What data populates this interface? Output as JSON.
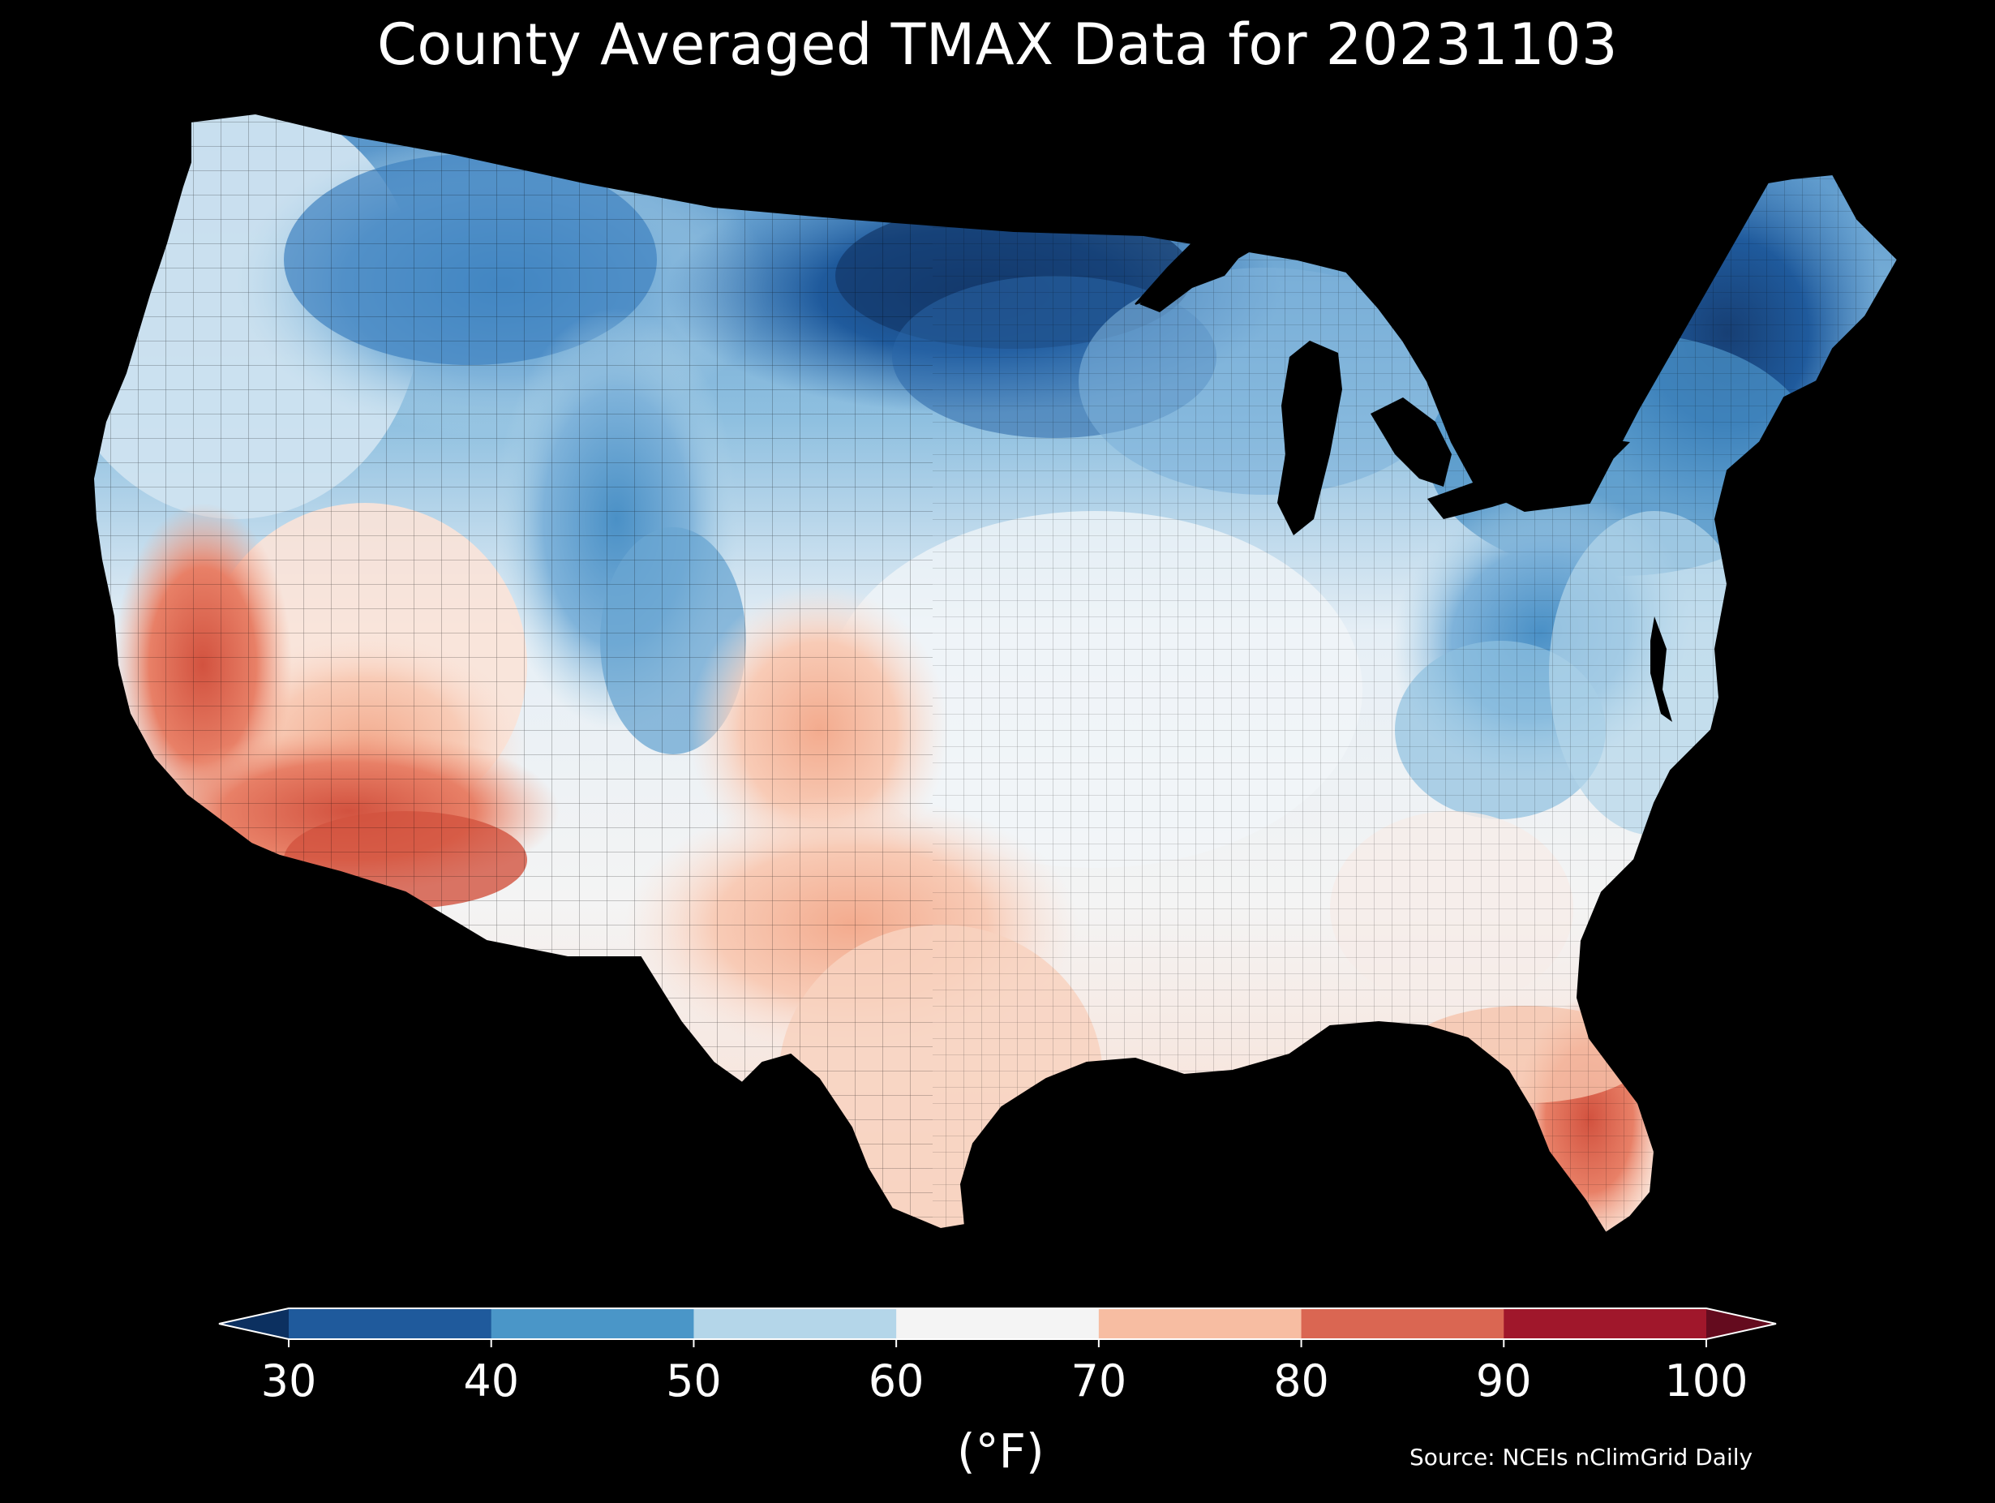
{
  "title": "County Averaged TMAX Data for 20231103",
  "source_note": "Source: NCEIs nClimGrid Daily",
  "colorbar": {
    "unit_label": "(°F)",
    "ticks": [
      "30",
      "40",
      "50",
      "60",
      "70",
      "80",
      "90",
      "100"
    ],
    "bins": [
      {
        "range": [
          30,
          40
        ],
        "color": "#1f5a9c"
      },
      {
        "range": [
          40,
          50
        ],
        "color": "#4a96c8"
      },
      {
        "range": [
          50,
          60
        ],
        "color": "#b4d6e9"
      },
      {
        "range": [
          60,
          70
        ],
        "color": "#f4f4f4"
      },
      {
        "range": [
          70,
          80
        ],
        "color": "#f7bda2"
      },
      {
        "range": [
          80,
          90
        ],
        "color": "#da6652"
      },
      {
        "range": [
          90,
          100
        ],
        "color": "#a0172b"
      }
    ],
    "under_color": "#0c3060",
    "over_color": "#640b1e",
    "extend": "both"
  },
  "map": {
    "projection": "Lambert conformal (CONUS)",
    "regions": [
      {
        "name": "pacific-northwest-coast",
        "temp_band": "50-60",
        "color": "#d6e8f3"
      },
      {
        "name": "northern-rockies",
        "temp_band": "40-50",
        "color": "#4a90c6"
      },
      {
        "name": "northern-plains-upper-midwest",
        "temp_band": "30-40",
        "color": "#1f5a9c"
      },
      {
        "name": "great-lakes-new-england",
        "temp_band": "40-50",
        "color": "#3f82c0"
      },
      {
        "name": "central-plains-ohio-valley",
        "temp_band": "60-70",
        "color": "#eef3f7"
      },
      {
        "name": "appalachians",
        "temp_band": "40-50",
        "color": "#7fb3da"
      },
      {
        "name": "southern-plains-texas",
        "temp_band": "70-80",
        "color": "#f8d2c0"
      },
      {
        "name": "california-desert-southwest",
        "temp_band": "80-90",
        "color": "#e88067"
      },
      {
        "name": "florida-peninsula",
        "temp_band": "80-90",
        "color": "#e68b70"
      }
    ]
  }
}
